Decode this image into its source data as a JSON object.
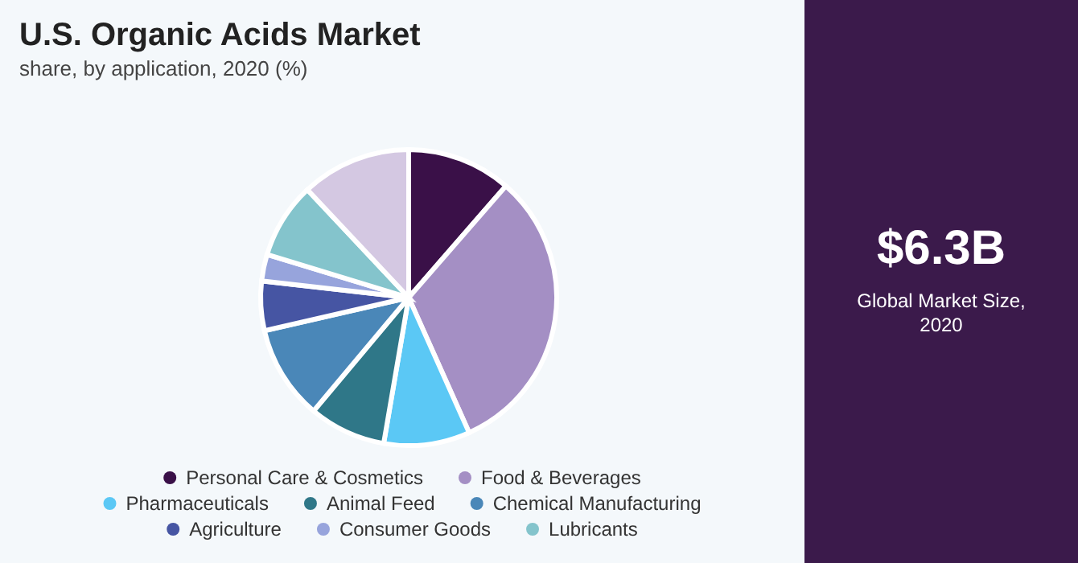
{
  "chart_data": {
    "type": "pie",
    "title": "U.S. Organic Acids Market",
    "subtitle": "share, by application, 2020 (%)",
    "categories": [
      "Personal Care & Cosmetics",
      "Food & Beverages",
      "Pharmaceuticals",
      "Animal Feed",
      "Chemical Manufacturing",
      "Agriculture",
      "Consumer Goods",
      "Lubricants",
      null
    ],
    "values": [
      11.4,
      31.9,
      9.4,
      8.4,
      10.3,
      5.4,
      2.9,
      8.3,
      12.0
    ],
    "colors": [
      "#3a1048",
      "#a48fc4",
      "#5bc8f5",
      "#2f7788",
      "#4a87b8",
      "#4655a3",
      "#97a4dc",
      "#84c4cc",
      "#d4c8e2"
    ],
    "legend": "bottom",
    "annotations": [
      "$6.3B",
      "Global Market Size, 2020"
    ]
  }
}
